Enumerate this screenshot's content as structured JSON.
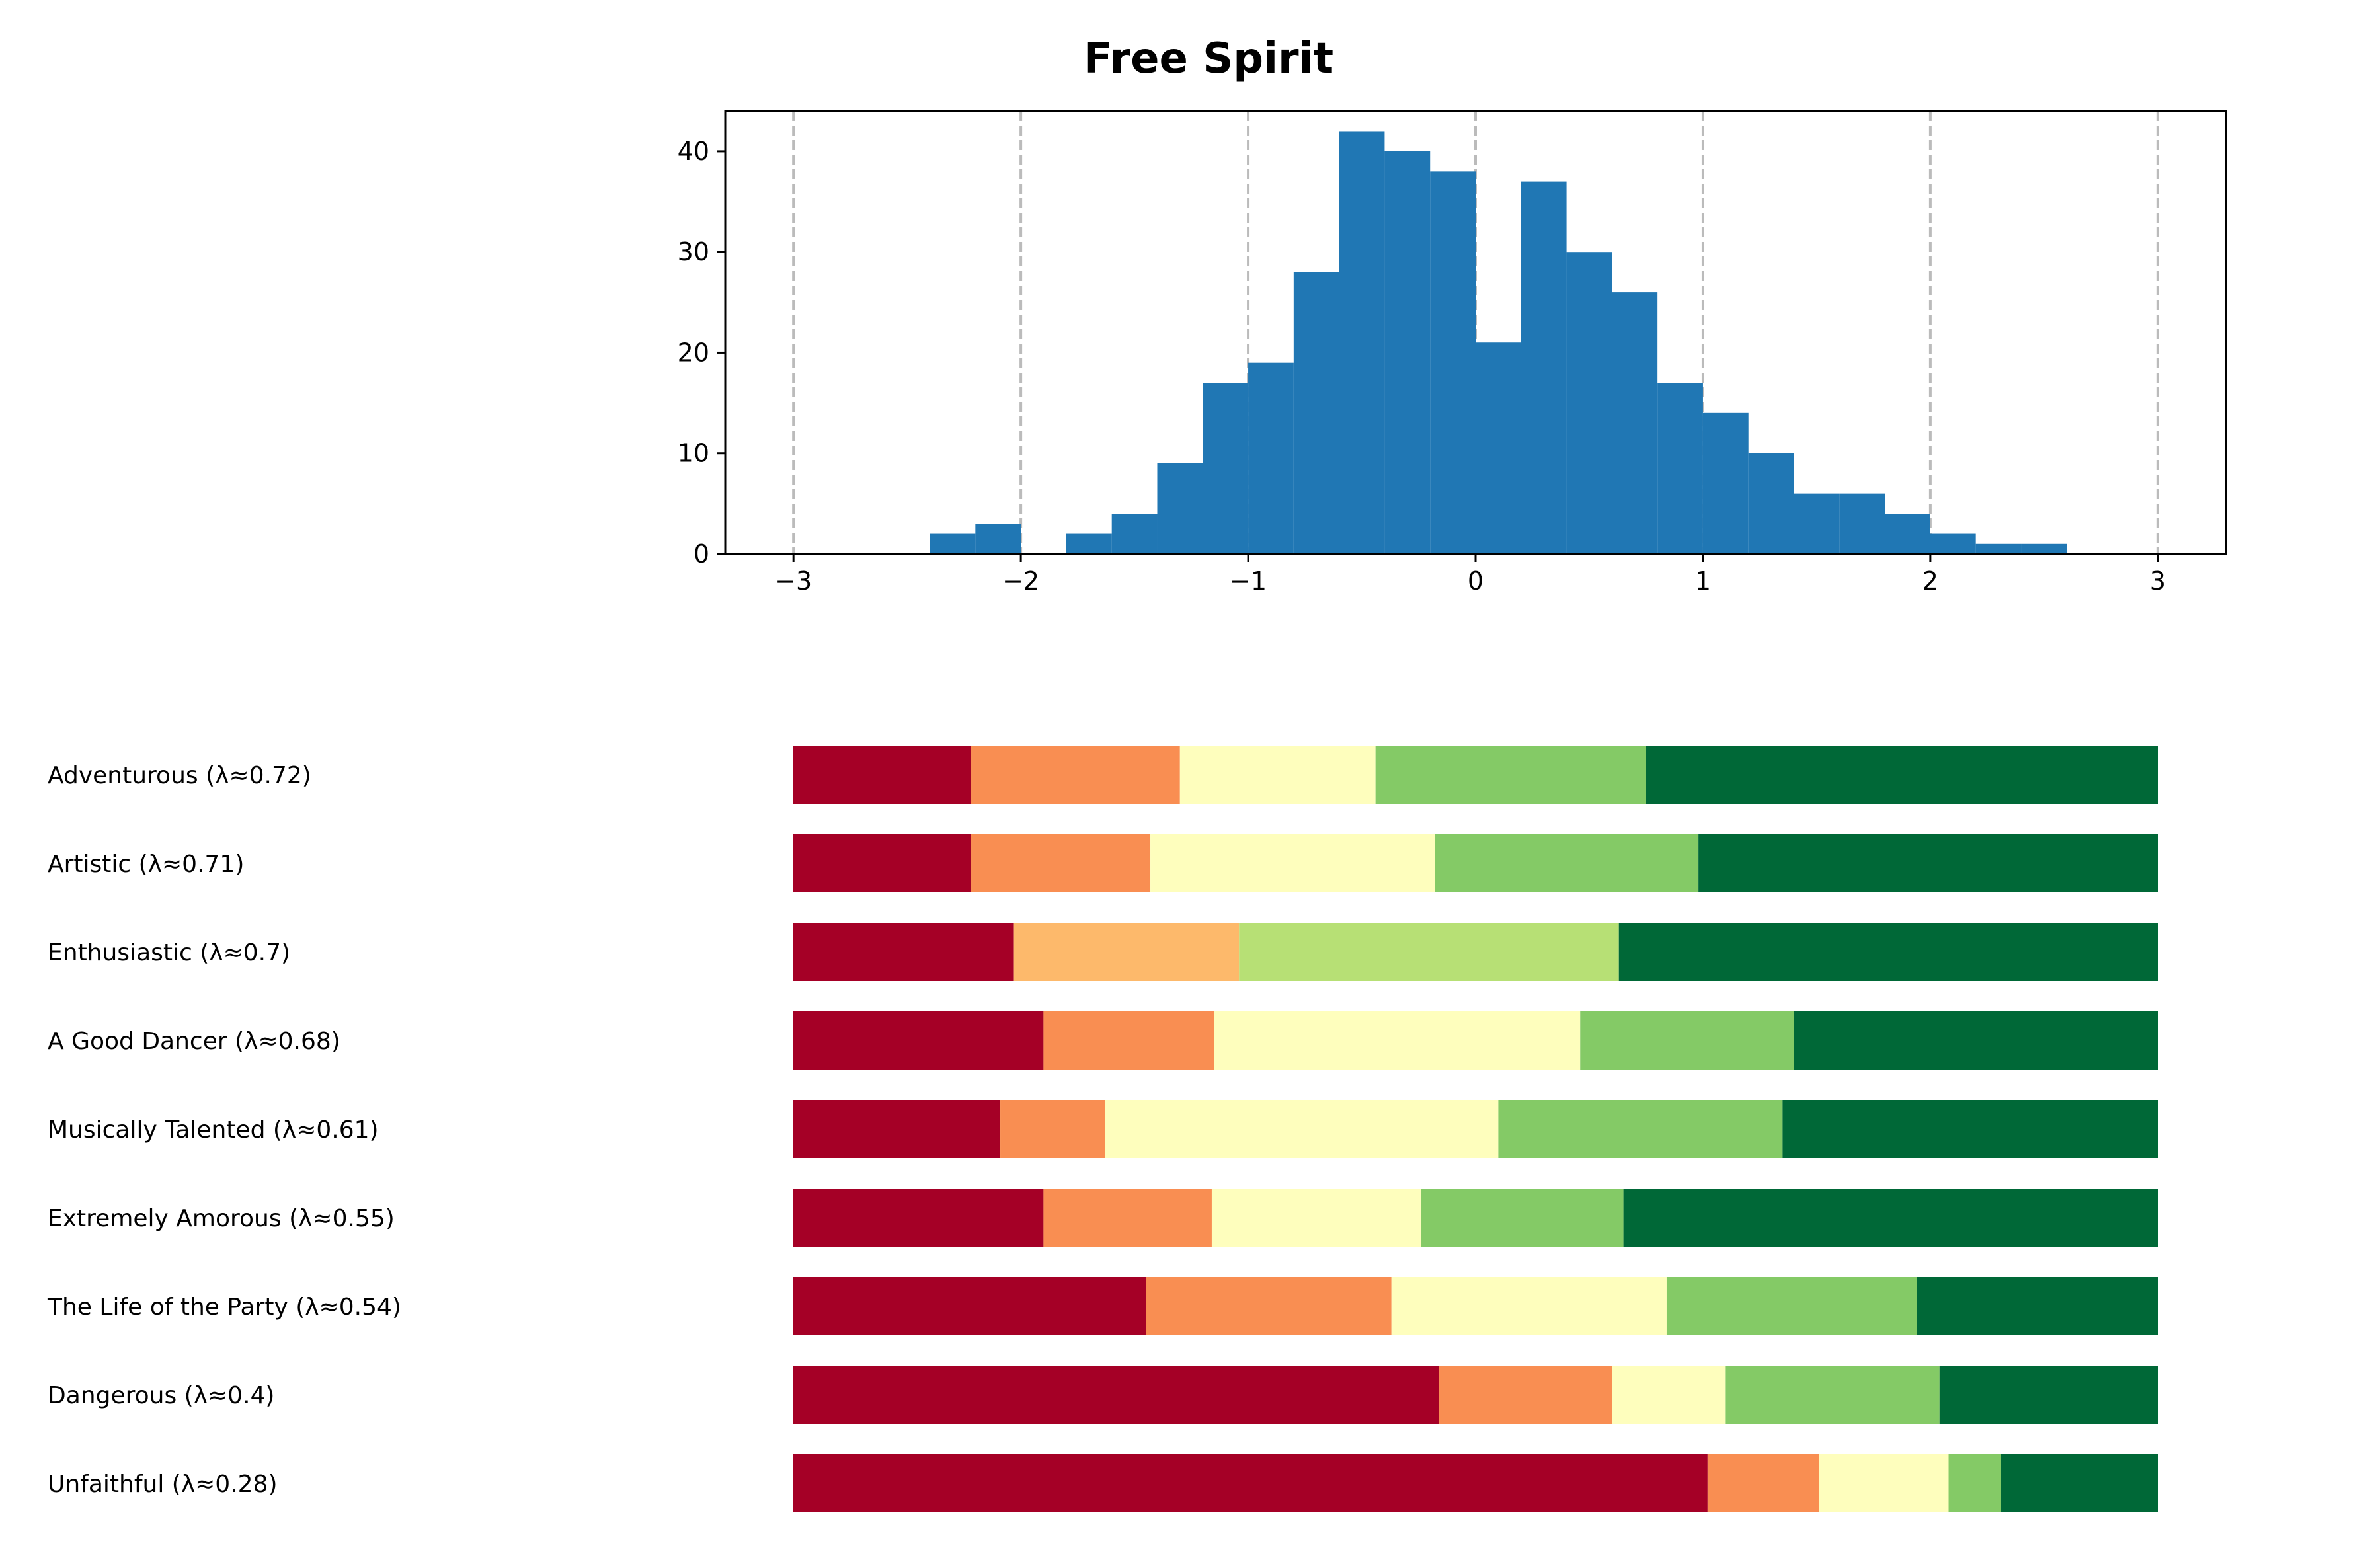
{
  "chart_data": [
    {
      "type": "bar",
      "subtype": "histogram",
      "title": "Free Spirit",
      "bar_color": "#2077b4",
      "reference_line_color": "#bbbbbb",
      "xlim": [
        -3.3,
        3.3
      ],
      "ylim": [
        0,
        44
      ],
      "xticks": [
        -3,
        -2,
        -1,
        0,
        1,
        2,
        3
      ],
      "xtick_labels": [
        "−3",
        "−2",
        "−1",
        "0",
        "1",
        "2",
        "3"
      ],
      "yticks": [
        0,
        10,
        20,
        30,
        40
      ],
      "ytick_labels": [
        "0",
        "10",
        "20",
        "30",
        "40"
      ],
      "reference_lines_x": [
        -3,
        -2,
        -1,
        0,
        1,
        2,
        3
      ],
      "bins": [
        {
          "x0": -2.4,
          "x1": -2.2,
          "count": 2
        },
        {
          "x0": -2.2,
          "x1": -2.0,
          "count": 3
        },
        {
          "x0": -2.0,
          "x1": -1.8,
          "count": 0
        },
        {
          "x0": -1.8,
          "x1": -1.6,
          "count": 2
        },
        {
          "x0": -1.6,
          "x1": -1.4,
          "count": 4
        },
        {
          "x0": -1.4,
          "x1": -1.2,
          "count": 9
        },
        {
          "x0": -1.2,
          "x1": -1.0,
          "count": 17
        },
        {
          "x0": -1.0,
          "x1": -0.8,
          "count": 19
        },
        {
          "x0": -0.8,
          "x1": -0.6,
          "count": 28
        },
        {
          "x0": -0.6,
          "x1": -0.4,
          "count": 42
        },
        {
          "x0": -0.4,
          "x1": -0.2,
          "count": 40
        },
        {
          "x0": -0.2,
          "x1": 0.0,
          "count": 38
        },
        {
          "x0": 0.0,
          "x1": 0.2,
          "count": 21
        },
        {
          "x0": 0.2,
          "x1": 0.4,
          "count": 37
        },
        {
          "x0": 0.4,
          "x1": 0.6,
          "count": 30
        },
        {
          "x0": 0.6,
          "x1": 0.8,
          "count": 26
        },
        {
          "x0": 0.8,
          "x1": 1.0,
          "count": 17
        },
        {
          "x0": 1.0,
          "x1": 1.2,
          "count": 14
        },
        {
          "x0": 1.2,
          "x1": 1.4,
          "count": 10
        },
        {
          "x0": 1.4,
          "x1": 1.6,
          "count": 6
        },
        {
          "x0": 1.6,
          "x1": 1.8,
          "count": 6
        },
        {
          "x0": 1.8,
          "x1": 2.0,
          "count": 4
        },
        {
          "x0": 2.0,
          "x1": 2.2,
          "count": 2
        },
        {
          "x0": 2.2,
          "x1": 2.4,
          "count": 1
        },
        {
          "x0": 2.4,
          "x1": 2.6,
          "count": 1
        }
      ]
    },
    {
      "type": "bar",
      "subtype": "stacked-horizontal-proportion",
      "xlim": [
        -3,
        3
      ],
      "axes_visible": false,
      "series_colors": [
        "#a50026",
        "#f98e52",
        "#fdb96b",
        "#fefebd",
        "#b7e075",
        "#84ca66",
        "#006837"
      ],
      "rows": [
        {
          "label": "Adventurous (λ≈0.72)",
          "boundaries": [
            -3,
            -2.22,
            -1.3,
            -0.44,
            0.75,
            3
          ],
          "colors": [
            "#a50026",
            "#f98e52",
            "#fefebd",
            "#84ca66",
            "#006837"
          ]
        },
        {
          "label": "Artistic (λ≈0.71)",
          "boundaries": [
            -3,
            -2.22,
            -1.43,
            -0.18,
            0.98,
            3
          ],
          "colors": [
            "#a50026",
            "#f98e52",
            "#fefebd",
            "#84ca66",
            "#006837"
          ]
        },
        {
          "label": "Enthusiastic (λ≈0.7)",
          "boundaries": [
            -3,
            -2.03,
            -1.04,
            0.63,
            3
          ],
          "colors": [
            "#a50026",
            "#fdb96b",
            "#b7e075",
            "#006837"
          ]
        },
        {
          "label": "A Good Dancer (λ≈0.68)",
          "boundaries": [
            -3,
            -1.9,
            -1.15,
            0.46,
            1.4,
            3
          ],
          "colors": [
            "#a50026",
            "#f98e52",
            "#fefebd",
            "#84ca66",
            "#006837"
          ]
        },
        {
          "label": "Musically Talented (λ≈0.61)",
          "boundaries": [
            -3,
            -2.09,
            -1.63,
            0.1,
            1.35,
            3
          ],
          "colors": [
            "#a50026",
            "#f98e52",
            "#fefebd",
            "#84ca66",
            "#006837"
          ]
        },
        {
          "label": "Extremely Amorous (λ≈0.55)",
          "boundaries": [
            -3,
            -1.9,
            -1.16,
            -0.24,
            0.65,
            3
          ],
          "colors": [
            "#a50026",
            "#f98e52",
            "#fefebd",
            "#84ca66",
            "#006837"
          ]
        },
        {
          "label": "The Life of the Party (λ≈0.54)",
          "boundaries": [
            -3,
            -1.45,
            -0.37,
            0.84,
            1.94,
            3
          ],
          "colors": [
            "#a50026",
            "#f98e52",
            "#fefebd",
            "#84ca66",
            "#006837"
          ]
        },
        {
          "label": "Dangerous (λ≈0.4)",
          "boundaries": [
            -3,
            -0.16,
            0.6,
            1.1,
            2.04,
            3
          ],
          "colors": [
            "#a50026",
            "#f98e52",
            "#fefebd",
            "#84ca66",
            "#006837"
          ]
        },
        {
          "label": "Unfaithful (λ≈0.28)",
          "boundaries": [
            -3,
            1.02,
            1.51,
            2.08,
            2.31,
            3
          ],
          "colors": [
            "#a50026",
            "#f98e52",
            "#fefebd",
            "#84ca66",
            "#006837"
          ]
        }
      ]
    }
  ]
}
